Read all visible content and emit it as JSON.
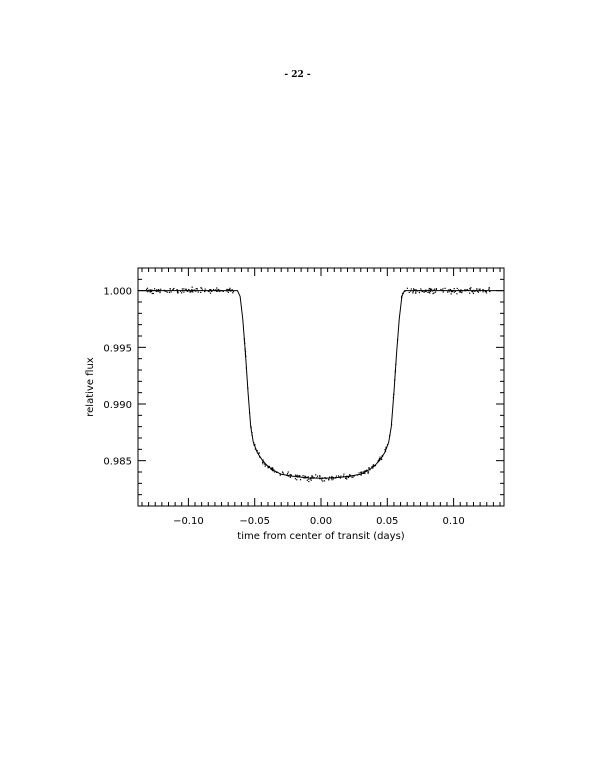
{
  "page": {
    "number": "- 22 -"
  },
  "chart_data": {
    "type": "scatter",
    "title": "",
    "xlabel": "time from center of transit (days)",
    "ylabel": "relative flux",
    "xlim": [
      -0.138,
      0.138
    ],
    "ylim": [
      0.981,
      1.002
    ],
    "x_ticks": [
      -0.1,
      -0.05,
      0.0,
      0.05,
      0.1
    ],
    "x_tick_labels": [
      "−0.10",
      "−0.05",
      "0.00",
      "0.05",
      "0.10"
    ],
    "y_ticks": [
      1.0,
      0.995,
      0.99,
      0.985
    ],
    "y_tick_labels": [
      "1.000",
      "0.995",
      "0.990",
      "0.985"
    ],
    "grid": false,
    "legend": "none",
    "series": [
      {
        "kind": "model-line",
        "points": [
          [
            -0.138,
            1.0
          ],
          [
            -0.063,
            1.0
          ],
          [
            -0.061,
            0.9995
          ],
          [
            -0.059,
            0.9975
          ],
          [
            -0.057,
            0.9945
          ],
          [
            -0.055,
            0.991
          ],
          [
            -0.053,
            0.988
          ],
          [
            -0.051,
            0.9866
          ],
          [
            -0.048,
            0.9857
          ],
          [
            -0.044,
            0.985
          ],
          [
            -0.04,
            0.9845
          ],
          [
            -0.035,
            0.9841
          ],
          [
            -0.03,
            0.9838
          ],
          [
            -0.02,
            0.9836
          ],
          [
            -0.01,
            0.98348
          ],
          [
            0.0,
            0.98345
          ],
          [
            0.01,
            0.98348
          ],
          [
            0.02,
            0.9836
          ],
          [
            0.03,
            0.9838
          ],
          [
            0.035,
            0.9841
          ],
          [
            0.04,
            0.9845
          ],
          [
            0.044,
            0.985
          ],
          [
            0.048,
            0.9857
          ],
          [
            0.051,
            0.9866
          ],
          [
            0.053,
            0.988
          ],
          [
            0.055,
            0.991
          ],
          [
            0.057,
            0.9945
          ],
          [
            0.059,
            0.9975
          ],
          [
            0.061,
            0.9995
          ],
          [
            0.063,
            1.0
          ],
          [
            0.138,
            1.0
          ]
        ]
      },
      {
        "kind": "observations",
        "x_range": [
          -0.132,
          0.128
        ],
        "gap": [
          -0.066,
          -0.058
        ],
        "scatter_sigma": 0.00012,
        "count": 460
      }
    ]
  }
}
